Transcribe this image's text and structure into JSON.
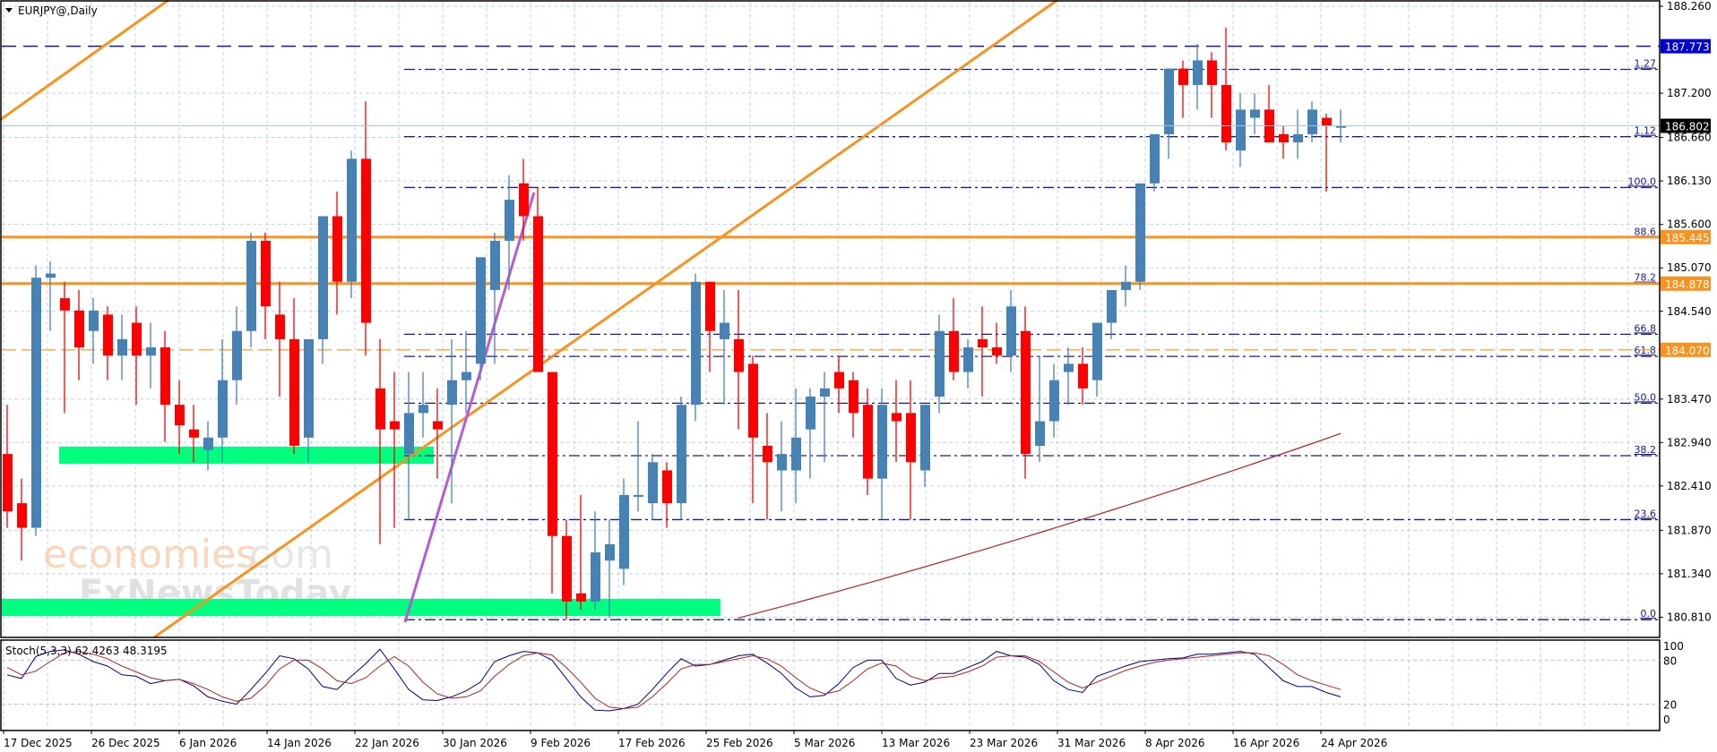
{
  "chart_title": "EURJPY@,Daily",
  "stoch_title": "Stoch(5,3,3) 62.4263 48.3195",
  "watermark": {
    "line1a": "economies",
    "line1b": ".com",
    "line2": "FxNewsToday"
  },
  "colors": {
    "bull": "#4682B4",
    "bear": "#FF0000",
    "grid": "#c0d4e0",
    "fib": "#1a1a8c",
    "orange": "#F7931E",
    "purple": "#B45CD6",
    "green_zone": "#00FF7F",
    "ma": "#B22222",
    "stoch_main": "#000080",
    "stoch_signal": "#B22222",
    "price_tag_bg": "#000000",
    "blue_tag_bg": "#0000CC",
    "orange_tag_bg": "#F7931E"
  },
  "price_axis": {
    "labels": [
      "188.260",
      "187.200",
      "186.660",
      "186.130",
      "185.600",
      "185.070",
      "184.540",
      "183.470",
      "182.940",
      "182.410",
      "181.870",
      "181.340",
      "180.810"
    ],
    "values": [
      188.26,
      187.2,
      186.66,
      186.13,
      185.6,
      185.07,
      184.54,
      183.47,
      182.94,
      182.41,
      181.87,
      181.34,
      180.81
    ]
  },
  "price_tags": [
    {
      "label": "187.773",
      "value": 187.773,
      "style": "blue"
    },
    {
      "label": "186.802",
      "value": 186.802,
      "style": "black"
    },
    {
      "label": "185.445",
      "value": 185.445,
      "style": "orange"
    },
    {
      "label": "184.878",
      "value": 184.878,
      "style": "orange"
    },
    {
      "label": "184.070",
      "value": 184.07,
      "style": "orange"
    }
  ],
  "fib_levels": [
    {
      "label": "1.27",
      "value": 187.49
    },
    {
      "label": "1.12",
      "value": 186.67
    },
    {
      "label": "100.0",
      "value": 186.05
    },
    {
      "label": "88.6",
      "value": 185.44
    },
    {
      "label": "78.2",
      "value": 184.88
    },
    {
      "label": "66.8",
      "value": 184.26
    },
    {
      "label": "61.8",
      "value": 183.99
    },
    {
      "label": "50.0",
      "value": 183.42
    },
    {
      "label": "38.2",
      "value": 182.78
    },
    {
      "label": "23.6",
      "value": 182.0
    },
    {
      "label": "0.0",
      "value": 180.78
    }
  ],
  "stoch_axis": {
    "labels": [
      "100",
      "80",
      "20",
      "0"
    ],
    "values": [
      100,
      80,
      20,
      0
    ]
  },
  "date_axis": {
    "labels": [
      "17 Dec 2025",
      "26 Dec 2025",
      "6 Jan 2026",
      "14 Jan 2026",
      "22 Jan 2026",
      "30 Jan 2026",
      "9 Feb 2026",
      "17 Feb 2026",
      "25 Feb 2026",
      "5 Mar 2026",
      "13 Mar 2026",
      "23 Mar 2026",
      "31 Mar 2026",
      "8 Apr 2026",
      "16 Apr 2026",
      "24 Apr 2026"
    ],
    "x": [
      4,
      102,
      200,
      298,
      396,
      494,
      592,
      690,
      788,
      886,
      984,
      1082,
      1180,
      1278,
      1376,
      1474
    ]
  },
  "chart_data": {
    "type": "candlestick",
    "title": "EURJPY@,Daily",
    "xlabel": "",
    "ylabel": "",
    "ylim": [
      180.75,
      188.33
    ],
    "x_tick_labels": [
      "17 Dec 2025",
      "26 Dec 2025",
      "6 Jan 2026",
      "14 Jan 2026",
      "22 Jan 2026",
      "30 Jan 2026",
      "9 Feb 2026",
      "17 Feb 2026",
      "25 Feb 2026",
      "5 Mar 2026",
      "13 Mar 2026",
      "23 Mar 2026",
      "31 Mar 2026",
      "8 Apr 2026",
      "16 Apr 2026",
      "24 Apr 2026"
    ],
    "candles": [
      [
        182.8,
        183.4,
        181.9,
        182.1
      ],
      [
        182.2,
        182.5,
        181.5,
        181.9
      ],
      [
        181.9,
        185.1,
        181.8,
        184.95
      ],
      [
        184.95,
        185.15,
        184.3,
        185.0
      ],
      [
        184.7,
        184.9,
        183.3,
        184.55
      ],
      [
        184.55,
        184.8,
        183.7,
        184.1
      ],
      [
        184.3,
        184.7,
        183.9,
        184.55
      ],
      [
        184.5,
        184.6,
        183.7,
        184.0
      ],
      [
        184.0,
        184.5,
        183.7,
        184.2
      ],
      [
        184.4,
        184.6,
        183.4,
        184.0
      ],
      [
        184.0,
        184.4,
        183.6,
        184.1
      ],
      [
        184.1,
        184.3,
        182.95,
        183.4
      ],
      [
        183.4,
        183.7,
        182.8,
        183.15
      ],
      [
        183.1,
        183.4,
        182.7,
        183.0
      ],
      [
        182.85,
        183.2,
        182.6,
        183.0
      ],
      [
        183.0,
        184.2,
        182.7,
        183.7
      ],
      [
        183.7,
        184.6,
        183.4,
        184.3
      ],
      [
        184.3,
        185.5,
        184.1,
        185.4
      ],
      [
        185.4,
        185.5,
        184.2,
        184.6
      ],
      [
        184.5,
        184.9,
        183.5,
        184.2
      ],
      [
        184.2,
        184.7,
        182.8,
        182.9
      ],
      [
        183.0,
        184.2,
        182.7,
        184.2
      ],
      [
        184.2,
        185.6,
        183.9,
        185.7
      ],
      [
        185.7,
        186.0,
        184.5,
        184.9
      ],
      [
        184.9,
        186.5,
        184.7,
        186.4
      ],
      [
        186.4,
        187.1,
        184.0,
        184.4
      ],
      [
        183.6,
        184.2,
        181.7,
        183.1
      ],
      [
        183.2,
        183.8,
        181.9,
        183.1
      ],
      [
        182.8,
        183.8,
        182.0,
        183.3
      ],
      [
        183.3,
        183.8,
        183.0,
        183.4
      ],
      [
        183.2,
        183.6,
        182.5,
        183.1
      ],
      [
        183.4,
        184.2,
        182.2,
        183.7
      ],
      [
        183.7,
        184.3,
        183.3,
        183.8
      ],
      [
        183.9,
        185.0,
        183.7,
        185.2
      ],
      [
        184.8,
        185.5,
        183.9,
        185.4
      ],
      [
        185.4,
        186.2,
        184.8,
        185.9
      ],
      [
        186.1,
        186.4,
        185.4,
        185.7
      ],
      [
        185.7,
        186.05,
        183.8,
        183.8
      ],
      [
        183.8,
        183.3,
        181.1,
        181.8
      ],
      [
        181.8,
        182.0,
        180.78,
        181.0
      ],
      [
        181.1,
        182.3,
        180.9,
        181.0
      ],
      [
        181.0,
        182.1,
        180.9,
        181.6
      ],
      [
        181.5,
        182.0,
        180.8,
        181.7
      ],
      [
        181.4,
        182.5,
        181.2,
        182.3
      ],
      [
        182.3,
        183.2,
        182.1,
        182.3
      ],
      [
        182.2,
        182.8,
        182.0,
        182.7
      ],
      [
        182.6,
        182.7,
        181.9,
        182.2
      ],
      [
        182.2,
        183.5,
        182.0,
        183.4
      ],
      [
        183.4,
        185.0,
        183.2,
        184.9
      ],
      [
        184.9,
        184.9,
        183.8,
        184.3
      ],
      [
        184.2,
        184.8,
        183.4,
        184.4
      ],
      [
        184.2,
        184.8,
        183.1,
        183.8
      ],
      [
        183.9,
        184.0,
        182.2,
        183.0
      ],
      [
        182.9,
        183.3,
        182.0,
        182.7
      ],
      [
        182.6,
        183.2,
        182.1,
        182.8
      ],
      [
        182.6,
        183.6,
        182.2,
        183.0
      ],
      [
        183.1,
        183.6,
        182.5,
        183.5
      ],
      [
        183.5,
        183.8,
        182.7,
        183.6
      ],
      [
        183.8,
        184.0,
        183.3,
        183.6
      ],
      [
        183.7,
        183.8,
        183.0,
        183.3
      ],
      [
        183.4,
        183.6,
        182.3,
        182.5
      ],
      [
        182.5,
        183.6,
        182.0,
        183.4
      ],
      [
        183.3,
        183.7,
        182.7,
        183.2
      ],
      [
        183.3,
        183.7,
        182.0,
        182.7
      ],
      [
        182.6,
        183.4,
        182.4,
        183.4
      ],
      [
        183.5,
        184.5,
        183.3,
        184.3
      ],
      [
        184.3,
        184.7,
        183.7,
        183.8
      ],
      [
        183.8,
        184.2,
        183.6,
        184.1
      ],
      [
        184.2,
        184.6,
        183.5,
        184.1
      ],
      [
        184.1,
        184.4,
        183.9,
        184.0
      ],
      [
        184.0,
        184.8,
        183.8,
        184.6
      ],
      [
        184.3,
        184.6,
        182.5,
        182.8
      ],
      [
        182.9,
        184.0,
        182.7,
        183.2
      ],
      [
        183.2,
        183.9,
        183.0,
        183.7
      ],
      [
        183.8,
        184.1,
        183.4,
        183.9
      ],
      [
        183.9,
        184.1,
        183.4,
        183.6
      ],
      [
        183.7,
        184.3,
        183.5,
        184.4
      ],
      [
        184.4,
        184.6,
        184.2,
        184.8
      ],
      [
        184.8,
        185.1,
        184.6,
        184.9
      ],
      [
        184.9,
        186.1,
        184.8,
        186.1
      ],
      [
        186.1,
        186.7,
        186.0,
        186.7
      ],
      [
        186.7,
        187.5,
        186.4,
        187.5
      ],
      [
        187.5,
        187.6,
        186.9,
        187.3
      ],
      [
        187.3,
        187.8,
        187.0,
        187.6
      ],
      [
        187.6,
        187.7,
        186.9,
        187.3
      ],
      [
        187.3,
        188.0,
        186.5,
        186.6
      ],
      [
        186.5,
        187.2,
        186.3,
        187.0
      ],
      [
        186.9,
        187.2,
        186.7,
        187.0
      ],
      [
        187.0,
        187.3,
        186.7,
        186.6
      ],
      [
        186.7,
        186.8,
        186.4,
        186.6
      ],
      [
        186.6,
        187.0,
        186.4,
        186.7
      ],
      [
        186.7,
        187.1,
        186.6,
        187.0
      ],
      [
        186.9,
        186.95,
        186.0,
        186.8
      ],
      [
        186.8,
        187.0,
        186.6,
        186.8
      ]
    ],
    "ma": {
      "label": "Moving average",
      "x_start_index": 51,
      "start": 180.8,
      "end": 183.05
    },
    "horizontal_lines": [
      {
        "label": "187.773",
        "value": 187.773,
        "style": "dashed-blue"
      },
      {
        "label": "185.445",
        "value": 185.445,
        "style": "solid-orange"
      },
      {
        "label": "184.878",
        "value": 184.878,
        "style": "solid-orange"
      },
      {
        "label": "184.070",
        "value": 184.07,
        "style": "dashed-orange"
      }
    ],
    "fibonacci": [
      "1.27",
      "1.12",
      "100.0",
      "88.6",
      "78.2",
      "66.8",
      "61.8",
      "50.0",
      "38.2",
      "23.6",
      "0.0"
    ],
    "stochastic": {
      "params": "5,3,3",
      "main": 62.4263,
      "signal": 48.3195,
      "ylim": [
        0,
        100
      ],
      "levels": [
        80,
        20
      ]
    }
  }
}
